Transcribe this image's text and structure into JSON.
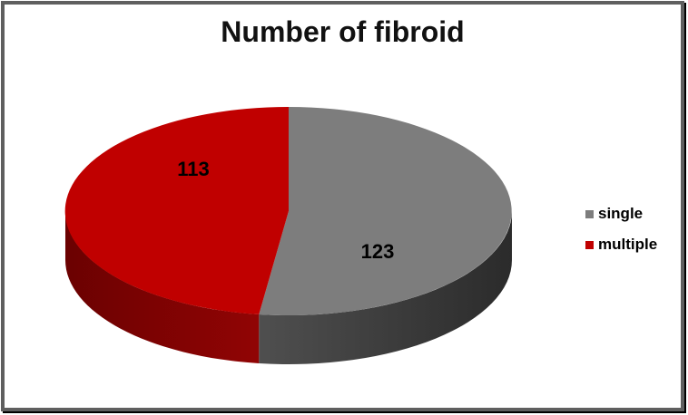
{
  "chart_data": {
    "type": "pie",
    "title": "Number of fibroid",
    "categories": [
      "single",
      "multiple"
    ],
    "values": [
      123,
      113
    ],
    "colors": [
      "#7D7D7D",
      "#C00000"
    ],
    "side_shading": [
      [
        "#4F4F4F",
        "#2B2B2B"
      ],
      [
        "#6B0101",
        "#910404"
      ]
    ],
    "effect": "3d",
    "start_angle_deg": 0,
    "direction": "clockwise",
    "legend_position": "right",
    "data_label_color": "#000000",
    "background": "#FFFFFF",
    "frame_border_color": "#5F5F5F"
  }
}
